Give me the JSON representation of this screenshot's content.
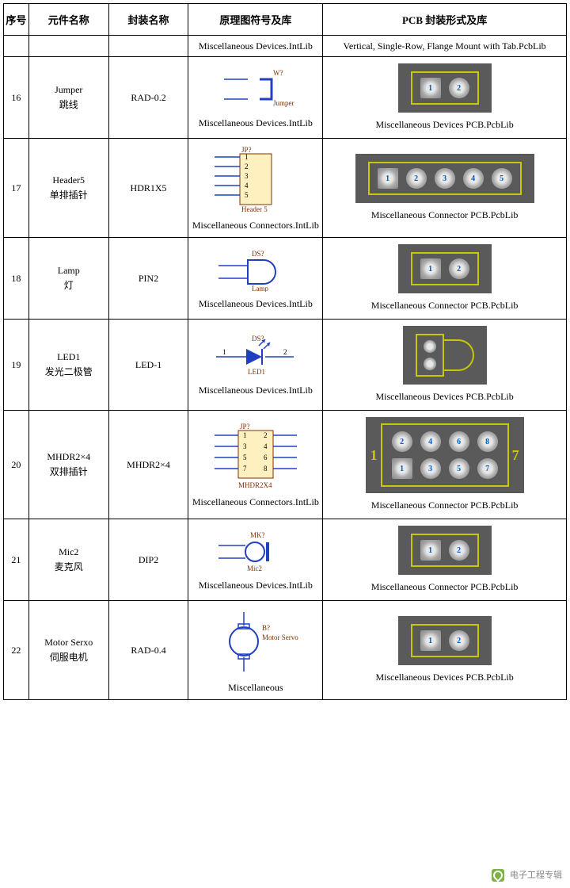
{
  "headers": {
    "seq": "序号",
    "name": "元件名称",
    "pkg": "封装名称",
    "sch": "原理图符号及库",
    "pcb": "PCB 封装形式及库"
  },
  "row_top": {
    "sch_lib": "Miscellaneous Devices.IntLib",
    "pcb_lib": "Vertical, Single-Row, Flange Mount with Tab.PcbLib"
  },
  "rows": [
    {
      "seq": "16",
      "name_en": "Jumper",
      "name_cn": "跳线",
      "pkg": "RAD-0.2",
      "sch_lib": "Miscellaneous Devices.IntLib",
      "sch_symbol": "jumper",
      "sch_labels": {
        "top": "W?",
        "bottom": "Jumper"
      },
      "pcb_lib": "Miscellaneous Devices PCB.PcbLib",
      "pcb": {
        "type": "pads",
        "outline": true,
        "pads": [
          {
            "n": "1",
            "shape": "sq"
          },
          {
            "n": "2"
          }
        ]
      }
    },
    {
      "seq": "17",
      "name_en": "Header5",
      "name_cn": "单排插针",
      "pkg": "HDR1X5",
      "sch_lib": "Miscellaneous Connectors.IntLib",
      "sch_symbol": "header5",
      "sch_labels": {
        "top": "JP?",
        "bottom": "Header 5",
        "pins": [
          "1",
          "2",
          "3",
          "4",
          "5"
        ]
      },
      "pcb_lib": "Miscellaneous Connector PCB.PcbLib",
      "pcb": {
        "type": "pads",
        "outline": true,
        "pads": [
          {
            "n": "1",
            "shape": "sq"
          },
          {
            "n": "2"
          },
          {
            "n": "3"
          },
          {
            "n": "4"
          },
          {
            "n": "5"
          }
        ]
      }
    },
    {
      "seq": "18",
      "name_en": "Lamp",
      "name_cn": "灯",
      "pkg": "PIN2",
      "sch_lib": "Miscellaneous Devices.IntLib",
      "sch_symbol": "lamp",
      "sch_labels": {
        "top": "DS?",
        "bottom": "Lamp"
      },
      "pcb_lib": "Miscellaneous Connector PCB.PcbLib",
      "pcb": {
        "type": "pads",
        "outline": true,
        "pads": [
          {
            "n": "1",
            "shape": "sq"
          },
          {
            "n": "2"
          }
        ]
      }
    },
    {
      "seq": "19",
      "name_en": "LED1",
      "name_cn": "发光二极管",
      "pkg": "LED-1",
      "sch_lib": "Miscellaneous Devices.IntLib",
      "sch_symbol": "led",
      "sch_labels": {
        "top": "DS?",
        "bottom": "LED1",
        "left": "1",
        "right": "2"
      },
      "pcb_lib": "Miscellaneous Devices PCB.PcbLib",
      "pcb": {
        "type": "led"
      }
    },
    {
      "seq": "20",
      "name_en": "MHDR2×4",
      "name_cn": "双排插针",
      "pkg": "MHDR2×4",
      "sch_lib": "Miscellaneous Connectors.IntLib",
      "sch_symbol": "mhdr2x4",
      "sch_labels": {
        "top": "JP?",
        "bottom": "MHDR2X4",
        "pins": [
          "1",
          "2",
          "3",
          "4",
          "5",
          "6",
          "7",
          "8"
        ]
      },
      "pcb_lib": "Miscellaneous Connector PCB.PcbLib",
      "pcb": {
        "type": "grid2x4",
        "left": "1",
        "right": "7",
        "rows": [
          [
            "2",
            "4",
            "6",
            "8"
          ],
          [
            "1",
            "3",
            "5",
            "7"
          ]
        ]
      }
    },
    {
      "seq": "21",
      "name_en": "Mic2",
      "name_cn": "麦克风",
      "pkg": "DIP2",
      "sch_lib": "Miscellaneous Devices.IntLib",
      "sch_symbol": "mic",
      "sch_labels": {
        "top": "MK?",
        "bottom": "Mic2"
      },
      "pcb_lib": "Miscellaneous Connector PCB.PcbLib",
      "pcb": {
        "type": "pads",
        "outline": true,
        "pads": [
          {
            "n": "1",
            "shape": "sq"
          },
          {
            "n": "2"
          }
        ]
      }
    },
    {
      "seq": "22",
      "name_en": "Motor Serxo",
      "name_cn": "伺服电机",
      "pkg": "RAD-0.4",
      "sch_lib": "Miscellaneous",
      "sch_symbol": "motor",
      "sch_labels": {
        "top": "B?",
        "bottom": "Motor Servo"
      },
      "pcb_lib": "Miscellaneous Devices PCB.PcbLib",
      "pcb": {
        "type": "pads",
        "outline": true,
        "pads": [
          {
            "n": "1",
            "shape": "sq"
          },
          {
            "n": "2"
          }
        ]
      }
    }
  ],
  "colors": {
    "schematic_blue": "#2040c0",
    "schematic_brown": "#803000",
    "pcb_bg": "#5a5a5a",
    "pcb_outline": "#c8c800",
    "pad_text": "#0060c0"
  },
  "watermark": "电子工程专辑"
}
